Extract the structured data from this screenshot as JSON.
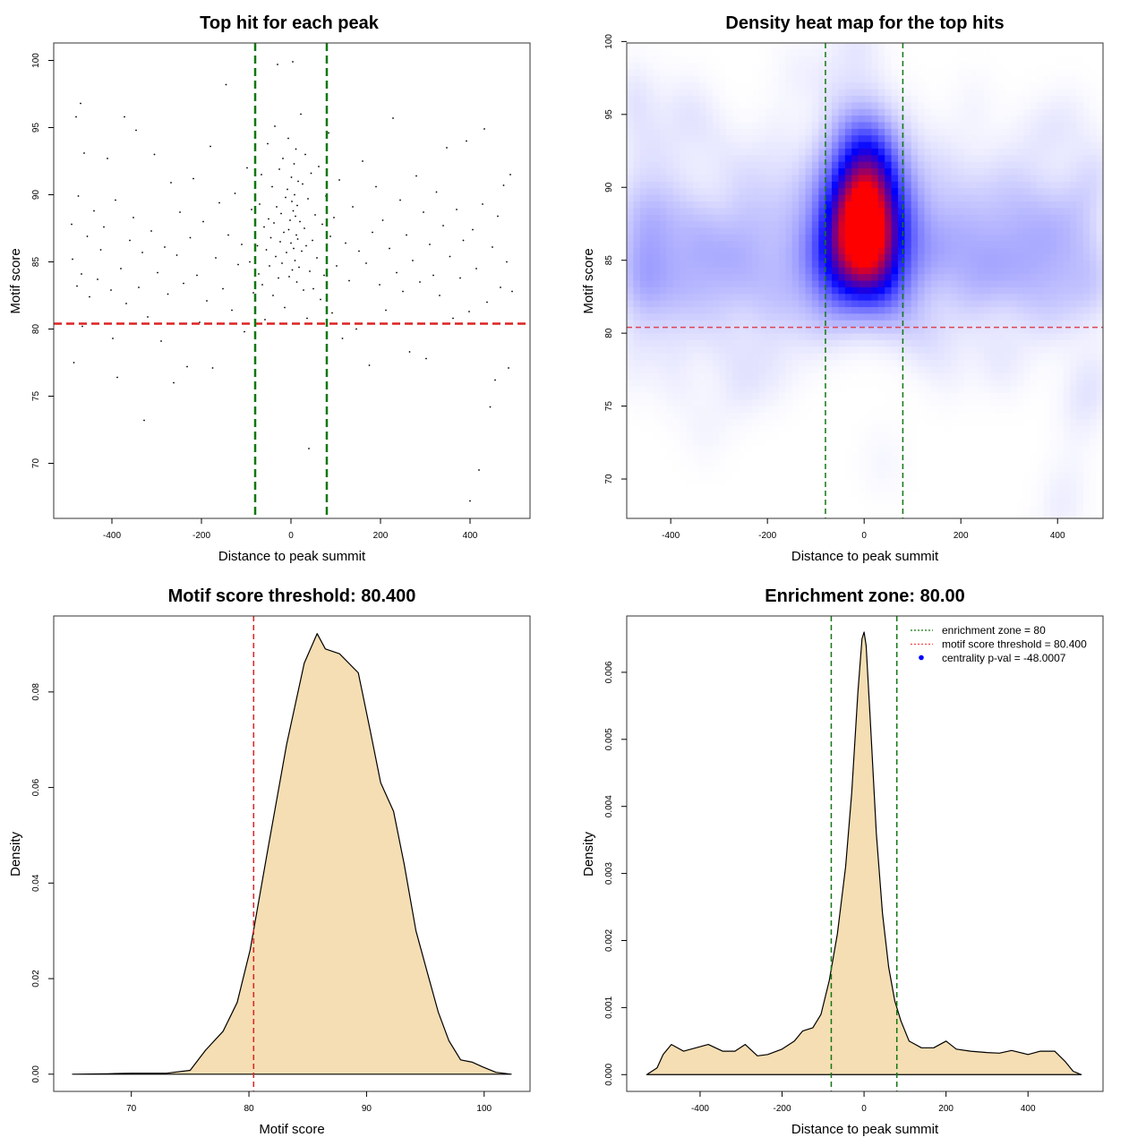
{
  "chart_data": [
    {
      "type": "scatter",
      "title": "Top hit for each peak",
      "xlabel": "Distance to peak summit",
      "ylabel": "Motif score",
      "xlim": [
        -530,
        534
      ],
      "ylim": [
        65.9,
        101.3
      ],
      "xticks": [
        -400,
        -200,
        0,
        200,
        400
      ],
      "xtick_labels": [
        "-400",
        "-200",
        "0",
        "200",
        "400"
      ],
      "yticks": [
        70,
        75,
        80,
        85,
        90,
        95,
        100
      ],
      "ytick_labels": [
        "70",
        "75",
        "80",
        "85",
        "90",
        "95",
        "100"
      ],
      "hlines": [
        {
          "y": 80.4,
          "color": "#dd2222"
        }
      ],
      "vlines": [
        {
          "x": -80,
          "color": "#117711"
        },
        {
          "x": 80,
          "color": "#117711"
        }
      ],
      "point_color": "#000000",
      "points": [
        [
          -490,
          87.8
        ],
        [
          -488,
          85.2
        ],
        [
          -485,
          77.5
        ],
        [
          -480,
          95.8
        ],
        [
          -478,
          83.2
        ],
        [
          -475,
          89.9
        ],
        [
          -470,
          96.8
        ],
        [
          -468,
          84.1
        ],
        [
          -466,
          80.2
        ],
        [
          -462,
          93.1
        ],
        [
          -455,
          86.9
        ],
        [
          -450,
          82.4
        ],
        [
          -440,
          88.8
        ],
        [
          -432,
          83.7
        ],
        [
          -425,
          85.9
        ],
        [
          -418,
          87.6
        ],
        [
          -410,
          92.7
        ],
        [
          -402,
          82.9
        ],
        [
          -398,
          79.3
        ],
        [
          -392,
          89.6
        ],
        [
          -388,
          76.4
        ],
        [
          -380,
          84.5
        ],
        [
          -372,
          95.8
        ],
        [
          -368,
          81.9
        ],
        [
          -360,
          86.6
        ],
        [
          -352,
          88.3
        ],
        [
          -346,
          94.8
        ],
        [
          -340,
          83.1
        ],
        [
          -332,
          85.7
        ],
        [
          -328,
          73.2
        ],
        [
          -320,
          80.9
        ],
        [
          -312,
          87.3
        ],
        [
          -305,
          93.0
        ],
        [
          -298,
          84.2
        ],
        [
          -290,
          79.1
        ],
        [
          -282,
          86.1
        ],
        [
          -275,
          82.6
        ],
        [
          -268,
          90.9
        ],
        [
          -262,
          76.0
        ],
        [
          -255,
          85.5
        ],
        [
          -248,
          88.7
        ],
        [
          -240,
          83.4
        ],
        [
          -232,
          77.2
        ],
        [
          -225,
          86.8
        ],
        [
          -218,
          91.2
        ],
        [
          -210,
          84.0
        ],
        [
          -204,
          80.5
        ],
        [
          -196,
          88.0
        ],
        [
          -188,
          82.1
        ],
        [
          -180,
          93.6
        ],
        [
          -175,
          77.1
        ],
        [
          -168,
          85.3
        ],
        [
          -160,
          89.4
        ],
        [
          -152,
          83.0
        ],
        [
          -145,
          98.2
        ],
        [
          -140,
          87.0
        ],
        [
          -132,
          81.4
        ],
        [
          -125,
          90.1
        ],
        [
          -118,
          84.8
        ],
        [
          -110,
          86.3
        ],
        [
          -104,
          79.8
        ],
        [
          -98,
          92.0
        ],
        [
          -92,
          85.0
        ],
        [
          -88,
          88.9
        ],
        [
          -84,
          82.7
        ],
        [
          -80,
          97.3
        ],
        [
          -75,
          86.2
        ],
        [
          -72,
          84.1
        ],
        [
          -70,
          89.3
        ],
        [
          -66,
          91.5
        ],
        [
          -64,
          83.3
        ],
        [
          -60,
          87.6
        ],
        [
          -58,
          80.7
        ],
        [
          -55,
          85.9
        ],
        [
          -52,
          93.8
        ],
        [
          -50,
          88.2
        ],
        [
          -48,
          84.7
        ],
        [
          -45,
          86.8
        ],
        [
          -42,
          90.6
        ],
        [
          -40,
          82.5
        ],
        [
          -38,
          87.9
        ],
        [
          -36,
          95.1
        ],
        [
          -34,
          85.4
        ],
        [
          -32,
          89.1
        ],
        [
          -30,
          99.7
        ],
        [
          -28,
          83.8
        ],
        [
          -26,
          91.9
        ],
        [
          -24,
          86.5
        ],
        [
          -22,
          88.6
        ],
        [
          -20,
          84.9
        ],
        [
          -18,
          92.7
        ],
        [
          -16,
          87.2
        ],
        [
          -14,
          81.6
        ],
        [
          -12,
          89.8
        ],
        [
          -10,
          85.7
        ],
        [
          -8,
          90.4
        ],
        [
          -6,
          94.2
        ],
        [
          -5,
          87.4
        ],
        [
          -4,
          83.9
        ],
        [
          -2,
          88.1
        ],
        [
          0,
          86.4
        ],
        [
          1,
          91.3
        ],
        [
          2,
          89.5
        ],
        [
          3,
          84.4
        ],
        [
          4,
          99.9
        ],
        [
          5,
          88.8
        ],
        [
          6,
          86.0
        ],
        [
          7,
          92.3
        ],
        [
          8,
          90.0
        ],
        [
          9,
          85.1
        ],
        [
          10,
          88.4
        ],
        [
          11,
          93.4
        ],
        [
          12,
          87.0
        ],
        [
          13,
          83.5
        ],
        [
          14,
          89.2
        ],
        [
          15,
          86.7
        ],
        [
          16,
          91.0
        ],
        [
          18,
          84.6
        ],
        [
          20,
          88.0
        ],
        [
          22,
          96.0
        ],
        [
          24,
          85.8
        ],
        [
          26,
          90.8
        ],
        [
          28,
          82.9
        ],
        [
          30,
          87.5
        ],
        [
          32,
          93.0
        ],
        [
          34,
          86.2
        ],
        [
          36,
          80.8
        ],
        [
          38,
          89.7
        ],
        [
          40,
          71.1
        ],
        [
          42,
          84.3
        ],
        [
          45,
          91.6
        ],
        [
          48,
          86.6
        ],
        [
          50,
          83.0
        ],
        [
          54,
          88.5
        ],
        [
          58,
          85.3
        ],
        [
          62,
          92.1
        ],
        [
          66,
          82.2
        ],
        [
          70,
          87.8
        ],
        [
          74,
          84.0
        ],
        [
          78,
          89.9
        ],
        [
          84,
          94.6
        ],
        [
          88,
          86.9
        ],
        [
          92,
          81.2
        ],
        [
          96,
          88.3
        ],
        [
          102,
          84.7
        ],
        [
          108,
          91.1
        ],
        [
          115,
          79.3
        ],
        [
          122,
          86.4
        ],
        [
          130,
          83.6
        ],
        [
          138,
          89.1
        ],
        [
          146,
          80.0
        ],
        [
          152,
          85.8
        ],
        [
          160,
          92.5
        ],
        [
          168,
          84.9
        ],
        [
          175,
          77.3
        ],
        [
          182,
          87.2
        ],
        [
          190,
          90.6
        ],
        [
          198,
          83.3
        ],
        [
          205,
          88.1
        ],
        [
          212,
          81.4
        ],
        [
          220,
          86.0
        ],
        [
          228,
          95.7
        ],
        [
          236,
          84.2
        ],
        [
          244,
          89.6
        ],
        [
          250,
          82.8
        ],
        [
          258,
          87.0
        ],
        [
          265,
          78.3
        ],
        [
          272,
          85.1
        ],
        [
          280,
          91.4
        ],
        [
          288,
          83.5
        ],
        [
          296,
          88.7
        ],
        [
          302,
          77.8
        ],
        [
          310,
          86.3
        ],
        [
          318,
          84.0
        ],
        [
          325,
          90.2
        ],
        [
          332,
          82.5
        ],
        [
          340,
          87.7
        ],
        [
          348,
          93.5
        ],
        [
          355,
          85.4
        ],
        [
          362,
          80.8
        ],
        [
          370,
          88.9
        ],
        [
          378,
          83.8
        ],
        [
          385,
          86.6
        ],
        [
          392,
          94.0
        ],
        [
          398,
          81.3
        ],
        [
          400,
          67.2
        ],
        [
          406,
          87.4
        ],
        [
          414,
          84.5
        ],
        [
          420,
          69.5
        ],
        [
          428,
          89.3
        ],
        [
          432,
          94.9
        ],
        [
          438,
          82.0
        ],
        [
          445,
          74.2
        ],
        [
          450,
          86.1
        ],
        [
          456,
          76.2
        ],
        [
          462,
          88.4
        ],
        [
          468,
          83.1
        ],
        [
          475,
          90.7
        ],
        [
          482,
          85.0
        ],
        [
          486,
          77.1
        ],
        [
          490,
          91.5
        ],
        [
          494,
          82.8
        ]
      ]
    },
    {
      "type": "heatmap",
      "title": "Density heat map for the top hits",
      "xlabel": "Distance to peak summit",
      "ylabel": "Motif score",
      "xlim": [
        -491,
        494
      ],
      "ylim": [
        67.3,
        99.9
      ],
      "xticks": [
        -400,
        -200,
        0,
        200,
        400
      ],
      "xtick_labels": [
        "-400",
        "-200",
        "0",
        "200",
        "400"
      ],
      "yticks": [
        70,
        75,
        80,
        85,
        90,
        95,
        100
      ],
      "ytick_labels": [
        "70",
        "75",
        "80",
        "85",
        "90",
        "95",
        "100"
      ],
      "colors": [
        "#ffffff",
        "#0000ff",
        "#ff0000"
      ],
      "hlines": [
        {
          "y": 80.4,
          "color": "#dd4455"
        }
      ],
      "vlines": [
        {
          "x": -80,
          "color": "#117711"
        },
        {
          "x": 80,
          "color": "#117711"
        }
      ]
    },
    {
      "type": "area",
      "title": "Motif score threshold: 80.400",
      "xlabel": "Motif score",
      "ylabel": "Density",
      "xlim": [
        63.4,
        103.9
      ],
      "ylim": [
        -0.0036,
        0.0959
      ],
      "xticks": [
        70,
        80,
        90,
        100
      ],
      "xtick_labels": [
        "70",
        "80",
        "90",
        "100"
      ],
      "yticks": [
        0,
        0.02,
        0.04,
        0.06,
        0.08
      ],
      "ytick_labels": [
        "0.00",
        "0.02",
        "0.04",
        "0.06",
        "0.08"
      ],
      "fill": "#f5deb3",
      "vlines": [
        {
          "x": 80.4,
          "color": "#dd2222"
        }
      ],
      "x": [
        65,
        68,
        70,
        73,
        75,
        76.3,
        77.8,
        79,
        80.1,
        81.6,
        83.2,
        84.7,
        85.8,
        86.5,
        87.7,
        89.3,
        90.3,
        91.2,
        92.3,
        93.2,
        94.2,
        95.2,
        96.1,
        97,
        98,
        99,
        99.9,
        101,
        102.3
      ],
      "y": [
        0,
        0.0001,
        0.0002,
        0.0002,
        0.0008,
        0.005,
        0.009,
        0.015,
        0.026,
        0.047,
        0.069,
        0.086,
        0.0922,
        0.089,
        0.088,
        0.084,
        0.072,
        0.061,
        0.055,
        0.044,
        0.03,
        0.021,
        0.013,
        0.007,
        0.003,
        0.0025,
        0.0015,
        0.0004,
        0
      ]
    },
    {
      "type": "area",
      "title": "Enrichment zone: 80.00",
      "xlabel": "Distance to peak summit",
      "ylabel": "Density",
      "xlim": [
        -579,
        583
      ],
      "ylim": [
        -0.00025,
        0.00684
      ],
      "xticks": [
        -400,
        -200,
        0,
        200,
        400
      ],
      "xtick_labels": [
        "-400",
        "-200",
        "0",
        "200",
        "400"
      ],
      "yticks": [
        0,
        0.001,
        0.002,
        0.003,
        0.004,
        0.005,
        0.006
      ],
      "ytick_labels": [
        "0.000",
        "0.001",
        "0.002",
        "0.003",
        "0.004",
        "0.005",
        "0.006"
      ],
      "fill": "#f5deb3",
      "vlines": [
        {
          "x": -80,
          "color": "#117711"
        },
        {
          "x": 80,
          "color": "#117711"
        }
      ],
      "x": [
        -530,
        -505,
        -490,
        -470,
        -440,
        -410,
        -380,
        -345,
        -315,
        -290,
        -260,
        -235,
        -200,
        -170,
        -150,
        -125,
        -105,
        -85,
        -65,
        -45,
        -30,
        -15,
        -5,
        0,
        5,
        15,
        30,
        45,
        60,
        75,
        90,
        110,
        140,
        170,
        200,
        225,
        260,
        300,
        330,
        360,
        400,
        430,
        465,
        490,
        510,
        530
      ],
      "y": [
        0,
        0.0001,
        0.0003,
        0.00045,
        0.00035,
        0.0004,
        0.00045,
        0.00035,
        0.00035,
        0.00045,
        0.00028,
        0.0003,
        0.00038,
        0.0005,
        0.00065,
        0.0007,
        0.0009,
        0.0014,
        0.0021,
        0.0031,
        0.0042,
        0.0057,
        0.0065,
        0.0066,
        0.0064,
        0.0053,
        0.0036,
        0.0024,
        0.0016,
        0.0011,
        0.0008,
        0.0005,
        0.0004,
        0.0004,
        0.0005,
        0.00038,
        0.00035,
        0.00033,
        0.00032,
        0.00036,
        0.0003,
        0.00035,
        0.00035,
        0.0002,
        5e-05,
        0
      ],
      "legend": {
        "position": "top-right",
        "items": [
          {
            "label": "enrichment zone = 80",
            "color": "#117711",
            "style": "dotted-line"
          },
          {
            "label": "motif score threshold = 80.400",
            "color": "#ff4444",
            "style": "dotted-line"
          },
          {
            "label": "centrality p-val = -48.0007",
            "color": "#0000ff",
            "style": "point"
          }
        ]
      }
    }
  ]
}
